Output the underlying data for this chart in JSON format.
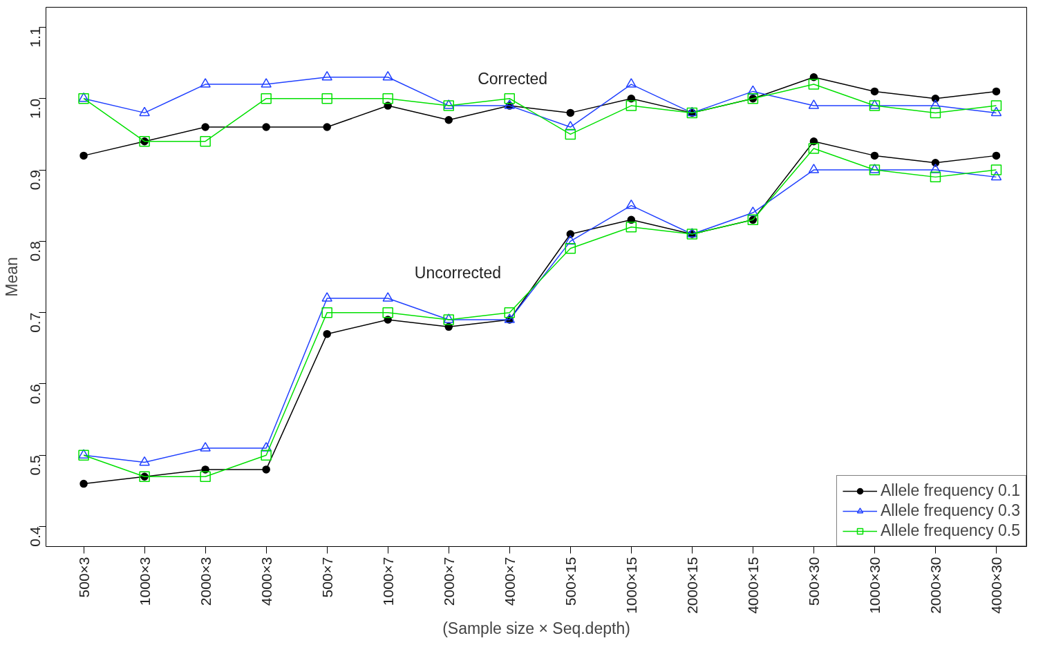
{
  "chart_data": {
    "type": "line",
    "xlabel": "(Sample size × Seq.depth)",
    "ylabel": "Mean",
    "categories": [
      "500×3",
      "1000×3",
      "2000×3",
      "4000×3",
      "500×7",
      "1000×7",
      "2000×7",
      "4000×7",
      "500×15",
      "1000×15",
      "2000×15",
      "4000×15",
      "500×30",
      "1000×30",
      "2000×30",
      "4000×30"
    ],
    "ylim": [
      0.372,
      1.128
    ],
    "yticks": [
      0.4,
      0.5,
      0.6,
      0.7,
      0.8,
      0.9,
      {
        "value": 1.0,
        "label": "1.0"
      },
      1.1
    ],
    "grid": false,
    "legend": "bottom right",
    "line_style": "solid",
    "series": [
      {
        "name": "Allele frequency 0.1",
        "color": "#000000",
        "marker": "circle",
        "values": [
          0.92,
          0.94,
          0.96,
          0.96,
          0.96,
          0.99,
          0.97,
          0.99,
          0.98,
          1.0,
          0.98,
          1.0,
          1.03,
          1.01,
          1.0,
          1.01
        ]
      },
      {
        "name": "Allele frequency 0.3",
        "color": "#2040ff",
        "marker": "triangle",
        "values": [
          1.0,
          0.98,
          1.02,
          1.02,
          1.03,
          1.03,
          0.99,
          0.99,
          0.96,
          1.02,
          0.98,
          1.01,
          0.99,
          0.99,
          0.99,
          0.98
        ]
      },
      {
        "name": "Allele frequency 0.5",
        "color": "#00e000",
        "marker": "square",
        "values": [
          1.0,
          0.94,
          0.94,
          1.0,
          1.0,
          1.0,
          0.99,
          1.0,
          0.95,
          0.99,
          0.98,
          1.0,
          1.02,
          0.99,
          0.98,
          0.99
        ]
      },
      {
        "color": "#000000",
        "marker": "circle",
        "values": [
          0.46,
          0.47,
          0.48,
          0.48,
          0.67,
          0.69,
          0.68,
          0.69,
          0.81,
          0.83,
          0.81,
          0.83,
          0.94,
          0.92,
          0.91,
          0.92
        ]
      },
      {
        "color": "#2040ff",
        "marker": "triangle",
        "values": [
          0.5,
          0.49,
          0.51,
          0.51,
          0.72,
          0.72,
          0.69,
          0.69,
          0.8,
          0.85,
          0.81,
          0.84,
          0.9,
          0.9,
          0.9,
          0.89
        ]
      },
      {
        "color": "#00e000",
        "marker": "square",
        "values": [
          0.5,
          0.47,
          0.47,
          0.5,
          0.7,
          0.7,
          0.69,
          0.7,
          0.79,
          0.82,
          0.81,
          0.83,
          0.93,
          0.9,
          0.89,
          0.9
        ]
      }
    ],
    "annotations": [
      "Corrected",
      "Uncorrected"
    ]
  }
}
